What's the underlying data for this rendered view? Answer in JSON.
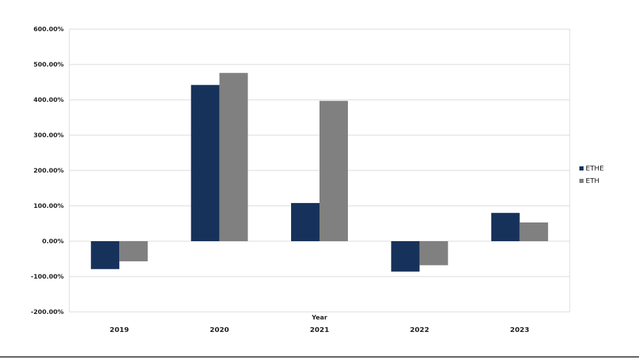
{
  "chart_data": {
    "type": "bar",
    "xlabel": "Year",
    "ylabel": "",
    "categories": [
      "2019",
      "2020",
      "2021",
      "2022",
      "2023"
    ],
    "series": [
      {
        "name": "ETHE",
        "color": "#17325a",
        "values": [
          -79,
          442,
          108,
          -86,
          80
        ]
      },
      {
        "name": "ETH",
        "color": "#808080",
        "values": [
          -57,
          476,
          397,
          -68,
          53
        ]
      }
    ],
    "ylim": [
      -200,
      600
    ],
    "yticks": [
      "600.00%",
      "500.00%",
      "400.00%",
      "300.00%",
      "200.00%",
      "100.00%",
      "0.00%",
      "-100.00%",
      "-200.00%"
    ],
    "grid": true,
    "legend_position": "right"
  }
}
